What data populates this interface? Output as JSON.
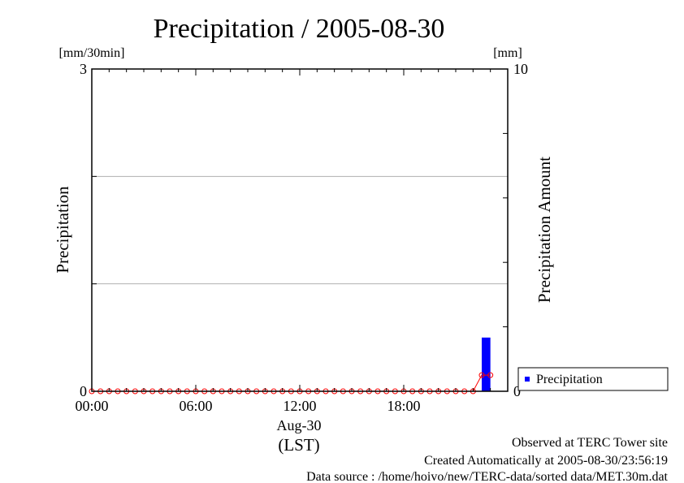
{
  "chart_data": {
    "type": "bar",
    "title": "Precipitation / 2005-08-30",
    "ylabel": "Precipitation",
    "y2label": "Precipitation Amount",
    "yunit": "[mm/30min]",
    "y2unit": "[mm]",
    "ylim": [
      0,
      3
    ],
    "y2lim": [
      0,
      10
    ],
    "ytick_labels": [
      "0",
      "3"
    ],
    "y2tick_labels": [
      "0",
      "10"
    ],
    "xtick_labels": [
      "00:00",
      "06:00",
      "12:00",
      "18:00"
    ],
    "xdate": "Aug-30",
    "xtz": "(LST)",
    "grid": true,
    "legend": {
      "position": "bottom-right",
      "entries": [
        "Precipitation"
      ]
    },
    "colors": {
      "bar": "#0000ff",
      "cumulative": "#ff0000",
      "grid": "#b0b0b0"
    },
    "series": [
      {
        "name": "Precipitation",
        "type": "bar",
        "axis": "left",
        "x_hours": [
          22.5
        ],
        "values": [
          0.5
        ]
      },
      {
        "type": "line",
        "axis": "right",
        "x_hours": [
          0,
          0.5,
          1,
          1.5,
          2,
          2.5,
          3,
          3.5,
          4,
          4.5,
          5,
          5.5,
          6,
          6.5,
          7,
          7.5,
          8,
          8.5,
          9,
          9.5,
          10,
          10.5,
          11,
          11.5,
          12,
          12.5,
          13,
          13.5,
          14,
          14.5,
          15,
          15.5,
          16,
          16.5,
          17,
          17.5,
          18,
          18.5,
          19,
          19.5,
          20,
          20.5,
          21,
          21.5,
          22,
          22.5,
          23
        ],
        "values": [
          0,
          0,
          0,
          0,
          0,
          0,
          0,
          0,
          0,
          0,
          0,
          0,
          0,
          0,
          0,
          0,
          0,
          0,
          0,
          0,
          0,
          0,
          0,
          0,
          0,
          0,
          0,
          0,
          0,
          0,
          0,
          0,
          0,
          0,
          0,
          0,
          0,
          0,
          0,
          0,
          0,
          0,
          0,
          0,
          0,
          0.5,
          0.5
        ]
      }
    ]
  },
  "footer": {
    "observed": "Observed at TERC Tower site",
    "created": "Created Automatically at 2005-08-30/23:56:19",
    "source": "Data source : /home/hoivo/new/TERC-data/sorted  data/MET.30m.dat"
  }
}
